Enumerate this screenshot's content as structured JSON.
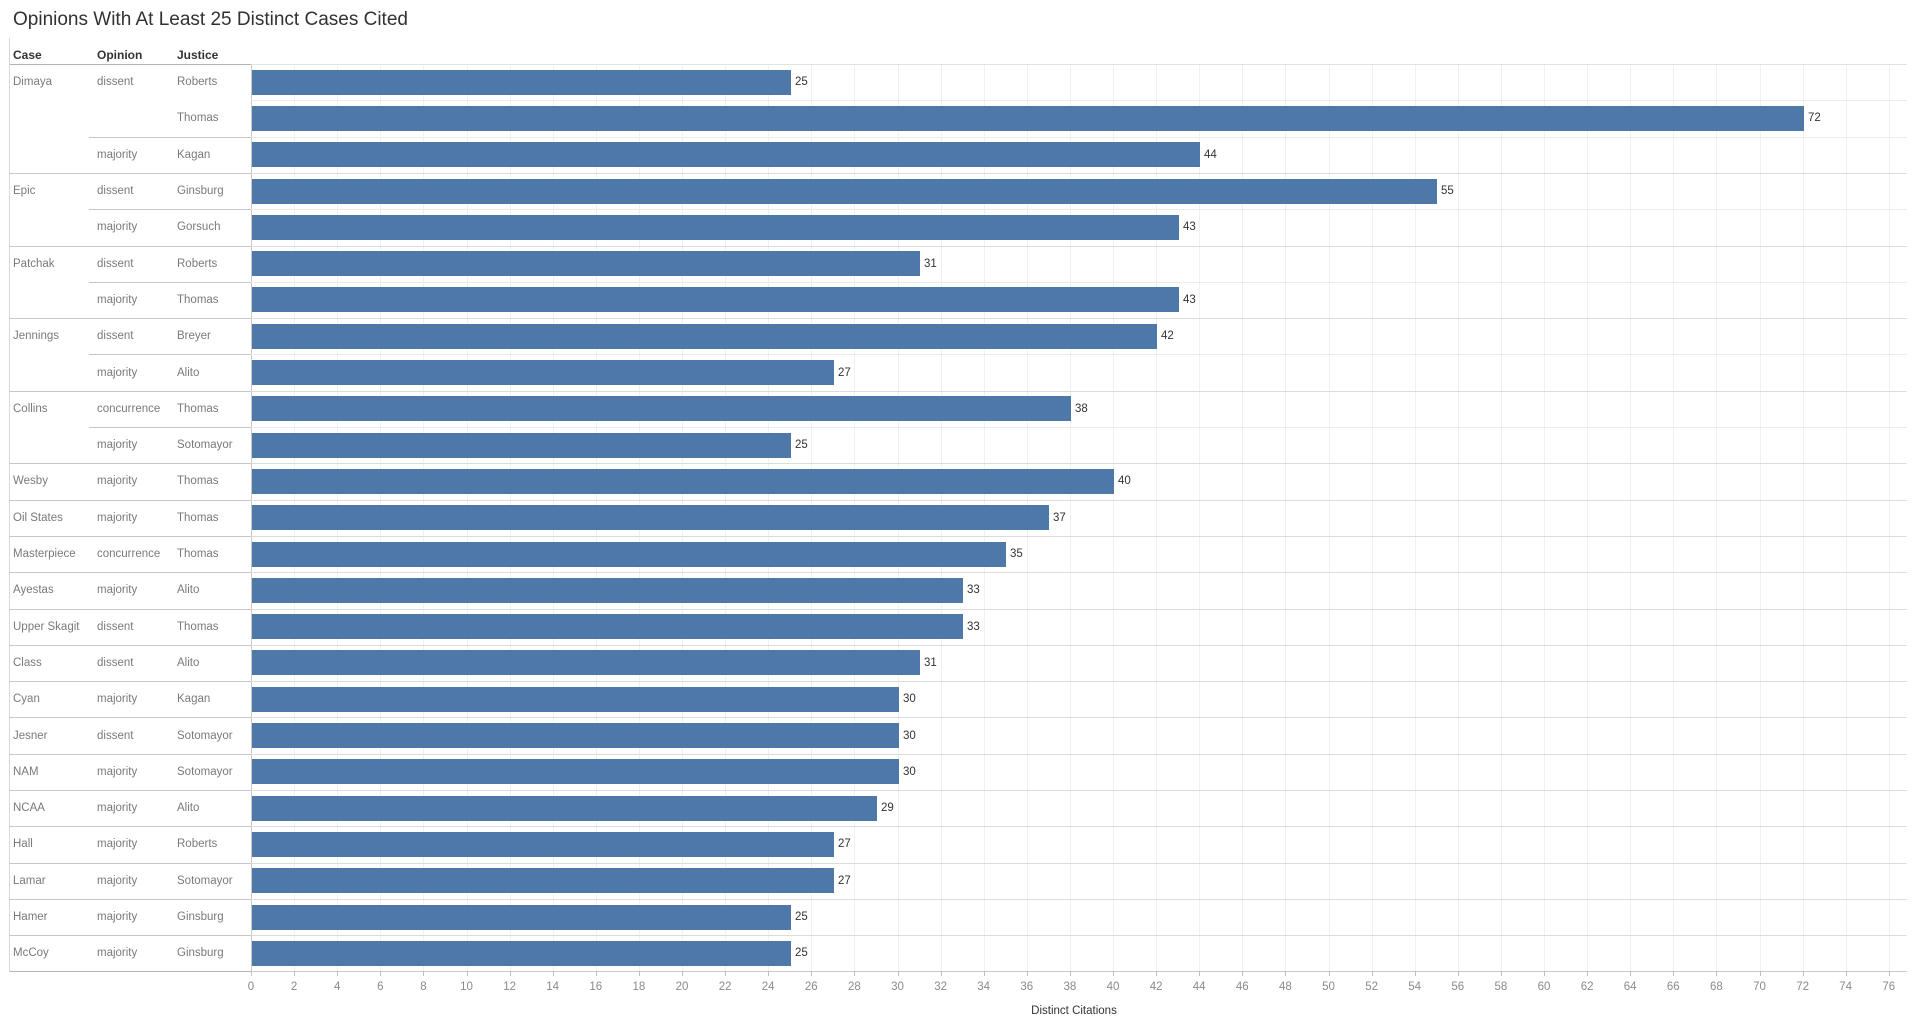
{
  "title": "Opinions With At Least 25 Distinct Cases Cited",
  "columns": {
    "case": "Case",
    "opinion": "Opinion",
    "justice": "Justice"
  },
  "axis": {
    "title": "Distinct Citations",
    "min": 0,
    "max": 76,
    "step": 2
  },
  "colors": {
    "bar": "#4d78a8"
  },
  "chart_data": {
    "type": "bar",
    "orientation": "horizontal",
    "title": "Opinions With At Least 25 Distinct Cases Cited",
    "xlabel": "Distinct Citations",
    "xlim": [
      0,
      76
    ],
    "x_tick_step": 2,
    "grid": true,
    "value_name": "Distinct Citations",
    "rows": [
      {
        "case": "Dimaya",
        "opinion": "dissent",
        "justice": "Roberts",
        "value": 25
      },
      {
        "case": "Dimaya",
        "opinion": "dissent",
        "justice": "Thomas",
        "value": 72
      },
      {
        "case": "Dimaya",
        "opinion": "majority",
        "justice": "Kagan",
        "value": 44
      },
      {
        "case": "Epic",
        "opinion": "dissent",
        "justice": "Ginsburg",
        "value": 55
      },
      {
        "case": "Epic",
        "opinion": "majority",
        "justice": "Gorsuch",
        "value": 43
      },
      {
        "case": "Patchak",
        "opinion": "dissent",
        "justice": "Roberts",
        "value": 31
      },
      {
        "case": "Patchak",
        "opinion": "majority",
        "justice": "Thomas",
        "value": 43
      },
      {
        "case": "Jennings",
        "opinion": "dissent",
        "justice": "Breyer",
        "value": 42
      },
      {
        "case": "Jennings",
        "opinion": "majority",
        "justice": "Alito",
        "value": 27
      },
      {
        "case": "Collins",
        "opinion": "concurrence",
        "justice": "Thomas",
        "value": 38
      },
      {
        "case": "Collins",
        "opinion": "majority",
        "justice": "Sotomayor",
        "value": 25
      },
      {
        "case": "Wesby",
        "opinion": "majority",
        "justice": "Thomas",
        "value": 40
      },
      {
        "case": "Oil States",
        "opinion": "majority",
        "justice": "Thomas",
        "value": 37
      },
      {
        "case": "Masterpiece",
        "opinion": "concurrence",
        "justice": "Thomas",
        "value": 35
      },
      {
        "case": "Ayestas",
        "opinion": "majority",
        "justice": "Alito",
        "value": 33
      },
      {
        "case": "Upper Skagit",
        "opinion": "dissent",
        "justice": "Thomas",
        "value": 33
      },
      {
        "case": "Class",
        "opinion": "dissent",
        "justice": "Alito",
        "value": 31
      },
      {
        "case": "Cyan",
        "opinion": "majority",
        "justice": "Kagan",
        "value": 30
      },
      {
        "case": "Jesner",
        "opinion": "dissent",
        "justice": "Sotomayor",
        "value": 30
      },
      {
        "case": "NAM",
        "opinion": "majority",
        "justice": "Sotomayor",
        "value": 30
      },
      {
        "case": "NCAA",
        "opinion": "majority",
        "justice": "Alito",
        "value": 29
      },
      {
        "case": "Hall",
        "opinion": "majority",
        "justice": "Roberts",
        "value": 27
      },
      {
        "case": "Lamar",
        "opinion": "majority",
        "justice": "Sotomayor",
        "value": 27
      },
      {
        "case": "Hamer",
        "opinion": "majority",
        "justice": "Ginsburg",
        "value": 25
      },
      {
        "case": "McCoy",
        "opinion": "majority",
        "justice": "Ginsburg",
        "value": 25
      }
    ]
  }
}
